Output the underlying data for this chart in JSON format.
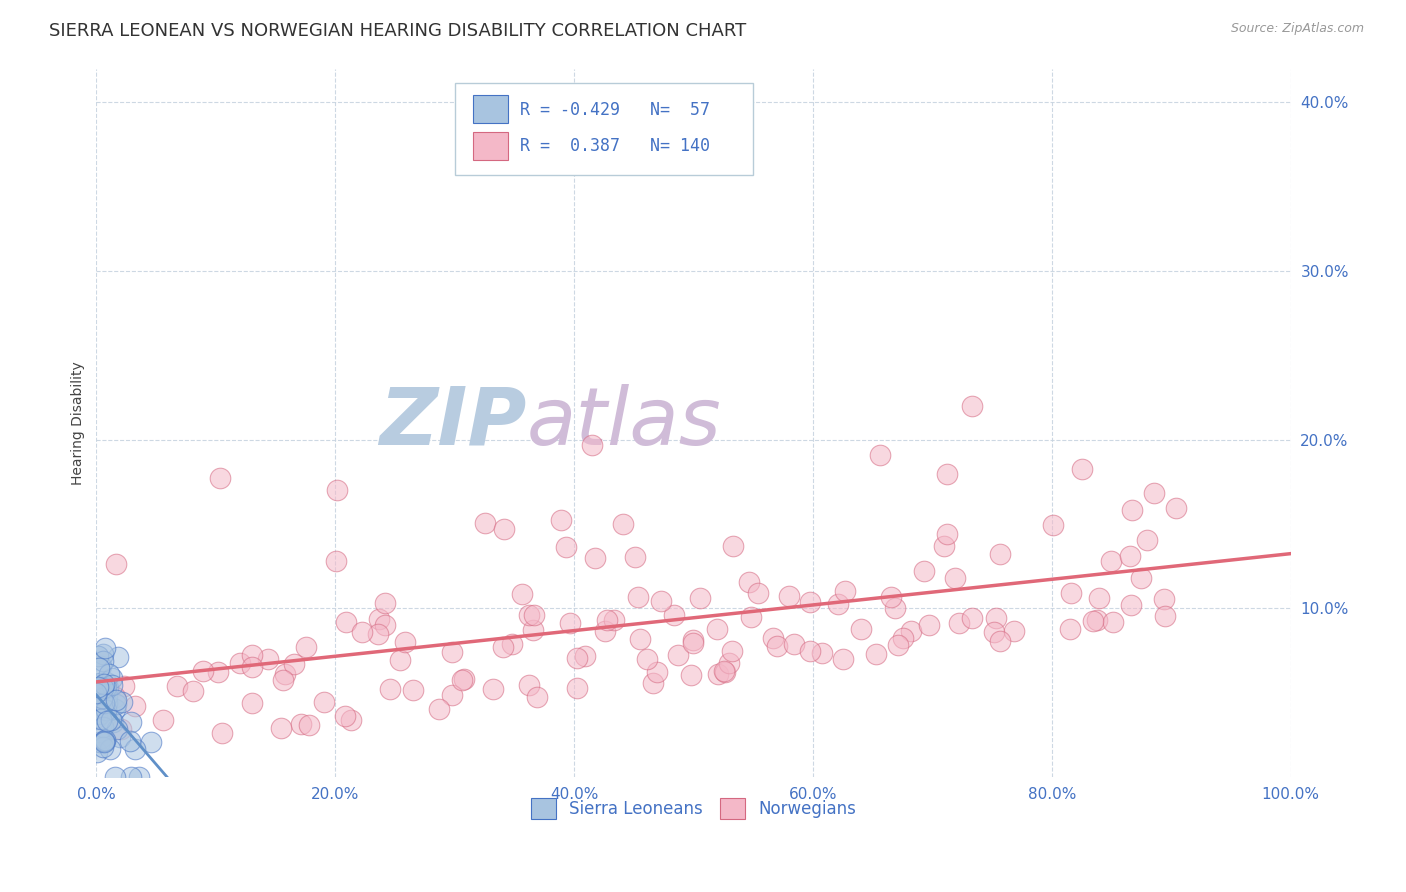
{
  "title": "SIERRA LEONEAN VS NORWEGIAN HEARING DISABILITY CORRELATION CHART",
  "source_text": "Source: ZipAtlas.com",
  "ylabel": "Hearing Disability",
  "xlabel": "",
  "legend_label1": "Sierra Leoneans",
  "legend_label2": "Norwegians",
  "r1": -0.429,
  "n1": 57,
  "r2": 0.387,
  "n2": 140,
  "color_blue": "#a8c4e0",
  "color_blue_dark": "#4472c4",
  "color_pink": "#f4b8c8",
  "color_pink_dark": "#d46880",
  "color_pink_line": "#e06878",
  "color_blue_line": "#6090c8",
  "watermark_zip_color": "#c0d0e8",
  "watermark_atlas_color": "#d8c8e0",
  "background_color": "#ffffff",
  "grid_color": "#c8d4e0",
  "xlim": [
    0.0,
    1.0
  ],
  "ylim": [
    0.0,
    0.42
  ],
  "xticks": [
    0.0,
    0.2,
    0.4,
    0.6,
    0.8,
    1.0
  ],
  "yticks": [
    0.1,
    0.2,
    0.3,
    0.4
  ],
  "title_fontsize": 13,
  "axis_label_fontsize": 10,
  "tick_fontsize": 11
}
